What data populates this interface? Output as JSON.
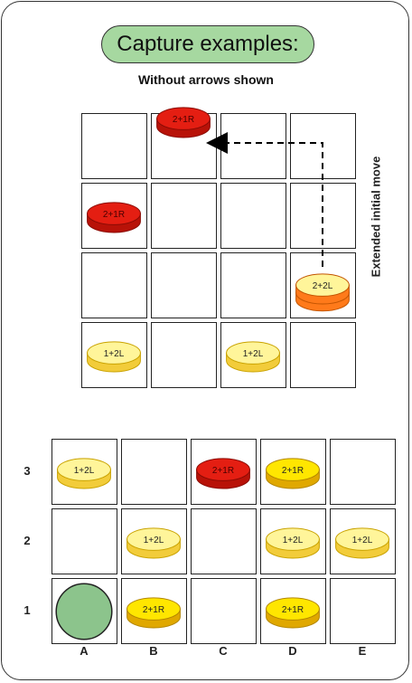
{
  "title": "Capture examples:",
  "subtitle": "Without arrows shown",
  "colors": {
    "title_fill": "#a6d8a0",
    "red": "#e41e12",
    "yellow": "#ffe600",
    "pale_yellow": "#fff59a",
    "orange": "#ff7a1a",
    "green": "#8cc48c"
  },
  "top_board": {
    "side_label": "Extended initial move",
    "rows": 4,
    "cols": 4,
    "pieces": [
      {
        "row": 0,
        "col": 1,
        "label": "2+1R",
        "color": "red"
      },
      {
        "row": 1,
        "col": 0,
        "label": "2+1R",
        "color": "red"
      },
      {
        "row": 2,
        "col": 3,
        "label": "2+2L",
        "color": "yellow-stack"
      },
      {
        "row": 3,
        "col": 0,
        "label": "1+2L",
        "color": "pale-yellow"
      },
      {
        "row": 3,
        "col": 2,
        "label": "1+2L",
        "color": "pale-yellow"
      }
    ]
  },
  "bottom_board": {
    "ranks": [
      "3",
      "2",
      "1"
    ],
    "files": [
      "A",
      "B",
      "C",
      "D",
      "E"
    ],
    "pieces": [
      {
        "rank": "3",
        "file": "A",
        "label": "1+2L",
        "color": "pale-yellow"
      },
      {
        "rank": "3",
        "file": "C",
        "label": "2+1R",
        "color": "red"
      },
      {
        "rank": "3",
        "file": "D",
        "label": "2+1R",
        "color": "yellow"
      },
      {
        "rank": "2",
        "file": "B",
        "label": "1+2L",
        "color": "pale-yellow"
      },
      {
        "rank": "2",
        "file": "D",
        "label": "1+2L",
        "color": "pale-yellow"
      },
      {
        "rank": "2",
        "file": "E",
        "label": "1+2L",
        "color": "pale-yellow"
      },
      {
        "rank": "1",
        "file": "A",
        "label": "",
        "color": "green-circle"
      },
      {
        "rank": "1",
        "file": "B",
        "label": "2+1R",
        "color": "yellow"
      },
      {
        "rank": "1",
        "file": "D",
        "label": "2+1R",
        "color": "yellow"
      }
    ]
  }
}
